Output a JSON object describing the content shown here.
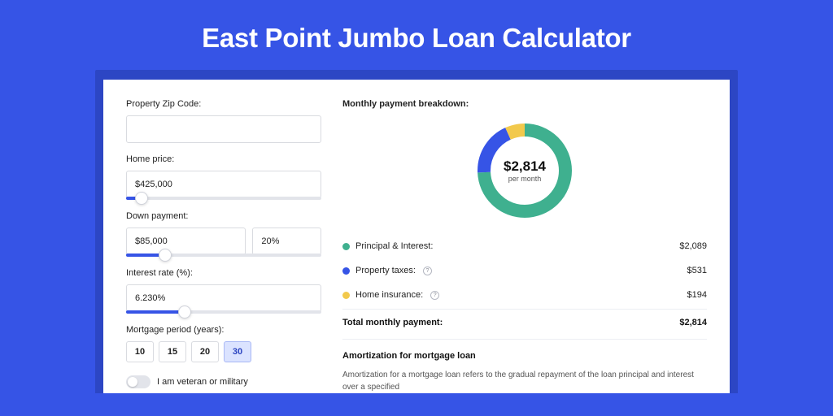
{
  "page": {
    "title": "East Point Jumbo Loan Calculator",
    "background_color": "#3654e6",
    "shadow_color": "#2c46c4",
    "card_bg": "#ffffff"
  },
  "form": {
    "zip": {
      "label": "Property Zip Code:",
      "value": ""
    },
    "home_price": {
      "label": "Home price:",
      "value": "$425,000",
      "slider_pct": 8
    },
    "down_payment": {
      "label": "Down payment:",
      "value": "$85,000",
      "pct_value": "20%",
      "slider_pct": 20
    },
    "interest_rate": {
      "label": "Interest rate (%):",
      "value": "6.230%",
      "slider_pct": 30
    },
    "mortgage_period": {
      "label": "Mortgage period (years):",
      "options": [
        "10",
        "15",
        "20",
        "30"
      ],
      "active": "30"
    },
    "veteran": {
      "label": "I am veteran or military",
      "checked": false
    }
  },
  "breakdown": {
    "title": "Monthly payment breakdown:",
    "center_amount": "$2,814",
    "center_sub": "per month",
    "donut": {
      "slices": [
        {
          "pct": 74.2,
          "color": "#3fb08f"
        },
        {
          "pct": 18.9,
          "color": "#3654e6"
        },
        {
          "pct": 6.9,
          "color": "#f2c94c"
        }
      ],
      "stroke_width": 16
    },
    "rows": [
      {
        "label": "Principal & Interest:",
        "value": "$2,089",
        "dot": "#3fb08f",
        "info": false
      },
      {
        "label": "Property taxes:",
        "value": "$531",
        "dot": "#3654e6",
        "info": true
      },
      {
        "label": "Home insurance:",
        "value": "$194",
        "dot": "#f2c94c",
        "info": true
      }
    ],
    "total": {
      "label": "Total monthly payment:",
      "value": "$2,814"
    }
  },
  "amortization": {
    "title": "Amortization for mortgage loan",
    "text": "Amortization for a mortgage loan refers to the gradual repayment of the loan principal and interest over a specified"
  }
}
